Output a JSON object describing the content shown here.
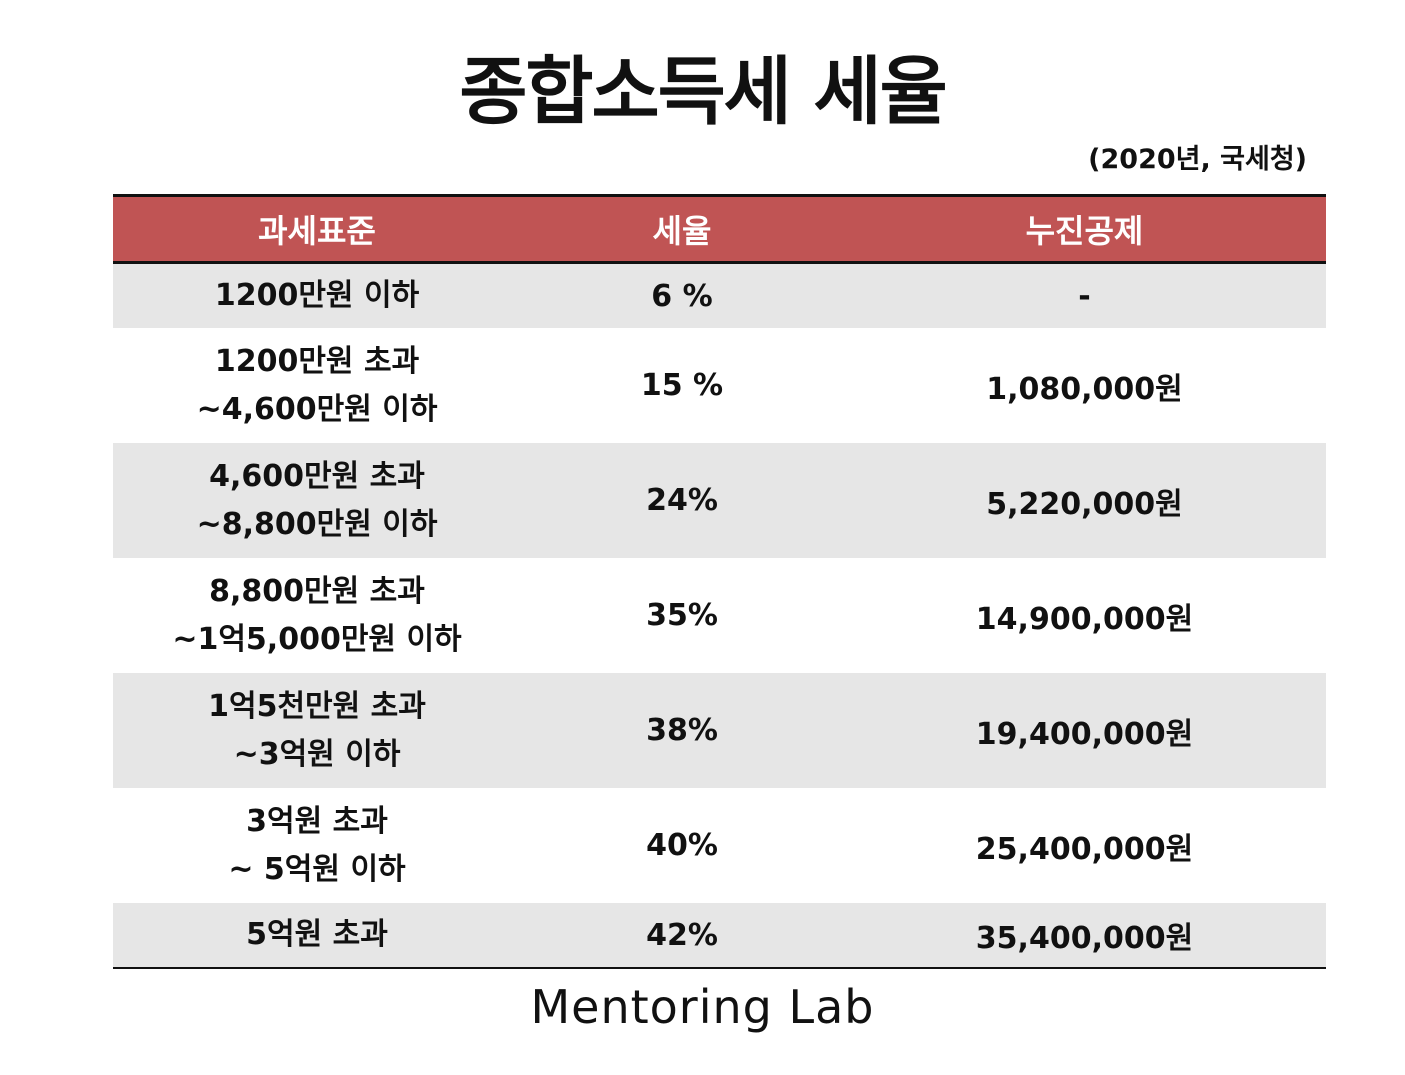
{
  "title": "종합소득세 세율",
  "source": "(2020년, 국세청)",
  "table": {
    "headers": [
      "과세표준",
      "세율",
      "누진공제"
    ],
    "rows": [
      {
        "bracket": [
          "1200만원 이하"
        ],
        "rate": "6 %",
        "deduction": "-"
      },
      {
        "bracket": [
          "1200만원 초과",
          "~4,600만원 이하"
        ],
        "rate": "15 %",
        "deduction": "1,080,000원"
      },
      {
        "bracket": [
          "4,600만원 초과",
          "~8,800만원 이하"
        ],
        "rate": "24%",
        "deduction": "5,220,000원"
      },
      {
        "bracket": [
          "8,800만원 초과",
          "~1억5,000만원 이하"
        ],
        "rate": "35%",
        "deduction": "14,900,000원"
      },
      {
        "bracket": [
          "1억5천만원 초과",
          "~3억원 이하"
        ],
        "rate": "38%",
        "deduction": "19,400,000원"
      },
      {
        "bracket": [
          "3억원 초과",
          "~ 5억원 이하"
        ],
        "rate": "40%",
        "deduction": "25,400,000원"
      },
      {
        "bracket": [
          "5억원 초과"
        ],
        "rate": "42%",
        "deduction": "35,400,000원"
      }
    ]
  },
  "footer": "Mentoring Lab",
  "colors": {
    "header_bg": "#c05454",
    "shaded_row_bg": "#e6e6e6"
  }
}
